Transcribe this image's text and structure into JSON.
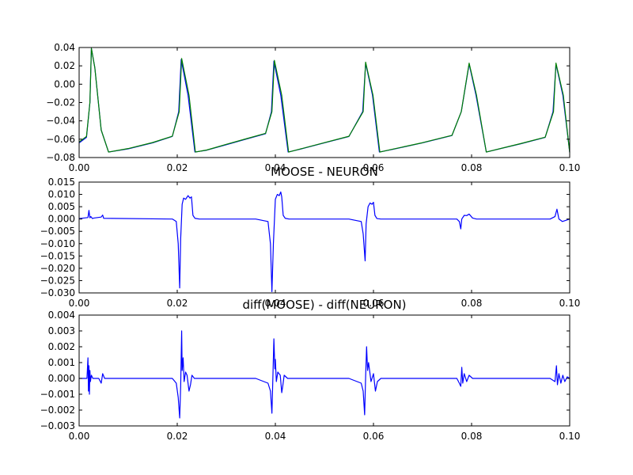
{
  "chart_data": [
    {
      "type": "line",
      "title": "",
      "xlabel": "",
      "ylabel": "",
      "xlim": [
        0.0,
        0.1
      ],
      "ylim": [
        -0.08,
        0.04
      ],
      "xticks": [
        "0.00",
        "0.02",
        "0.04",
        "0.06",
        "0.08",
        "0.10"
      ],
      "yticks": [
        "0.04",
        "0.02",
        "0.00",
        "−0.02",
        "−0.04",
        "−0.06",
        "−0.08"
      ],
      "grid": false,
      "series": [
        {
          "color": "#0000ff",
          "x": [
            0.0,
            0.0015,
            0.0022,
            0.0025,
            0.0032,
            0.0045,
            0.006,
            0.01,
            0.015,
            0.019,
            0.0203,
            0.0208,
            0.0222,
            0.0236,
            0.026,
            0.03,
            0.034,
            0.038,
            0.0392,
            0.0397,
            0.0411,
            0.0426,
            0.045,
            0.05,
            0.055,
            0.0578,
            0.0584,
            0.0598,
            0.0612,
            0.064,
            0.07,
            0.076,
            0.0779,
            0.0795,
            0.0809,
            0.083,
            0.09,
            0.095,
            0.0966,
            0.0972,
            0.0986,
            0.1
          ],
          "y": [
            -0.064,
            -0.058,
            -0.02,
            0.039,
            0.018,
            -0.05,
            -0.074,
            -0.0705,
            -0.064,
            -0.057,
            -0.03,
            0.027,
            -0.012,
            -0.074,
            -0.072,
            -0.066,
            -0.06,
            -0.054,
            -0.03,
            0.025,
            -0.012,
            -0.074,
            -0.071,
            -0.064,
            -0.057,
            -0.03,
            0.023,
            -0.012,
            -0.074,
            -0.071,
            -0.064,
            -0.056,
            -0.03,
            0.022,
            -0.012,
            -0.074,
            -0.065,
            -0.058,
            -0.03,
            0.022,
            -0.012,
            -0.074
          ]
        },
        {
          "color": "#008000",
          "x": [
            0.0,
            0.0015,
            0.0022,
            0.0025,
            0.0032,
            0.0045,
            0.006,
            0.01,
            0.015,
            0.019,
            0.0204,
            0.0209,
            0.0224,
            0.0237,
            0.026,
            0.03,
            0.034,
            0.038,
            0.0393,
            0.0398,
            0.0413,
            0.0427,
            0.045,
            0.05,
            0.055,
            0.0579,
            0.0584,
            0.0599,
            0.0613,
            0.064,
            0.07,
            0.076,
            0.0779,
            0.0795,
            0.081,
            0.083,
            0.09,
            0.095,
            0.0967,
            0.0972,
            0.0987,
            0.1
          ],
          "y": [
            -0.063,
            -0.057,
            -0.02,
            0.039,
            0.018,
            -0.05,
            -0.074,
            -0.0702,
            -0.0636,
            -0.0567,
            -0.03,
            0.028,
            -0.012,
            -0.074,
            -0.0718,
            -0.0656,
            -0.0596,
            -0.0536,
            -0.03,
            0.026,
            -0.012,
            -0.074,
            -0.0708,
            -0.0638,
            -0.0568,
            -0.03,
            0.024,
            -0.012,
            -0.074,
            -0.0708,
            -0.0638,
            -0.0558,
            -0.03,
            0.023,
            -0.012,
            -0.074,
            -0.0648,
            -0.0578,
            -0.03,
            0.023,
            -0.012,
            -0.0745
          ]
        }
      ]
    },
    {
      "type": "line",
      "title": "MOOSE - NEURON",
      "xlabel": "",
      "ylabel": "",
      "xlim": [
        0.0,
        0.1
      ],
      "ylim": [
        -0.03,
        0.015
      ],
      "xticks": [
        "0.00",
        "0.02",
        "0.04",
        "0.06",
        "0.08",
        "0.10"
      ],
      "yticks": [
        "0.015",
        "0.010",
        "0.005",
        "0.000",
        "−0.005",
        "−0.010",
        "−0.015",
        "−0.020",
        "−0.025",
        "−0.030"
      ],
      "grid": false,
      "series": [
        {
          "color": "#0000ff",
          "x": [
            0.0,
            0.0018,
            0.002,
            0.0022,
            0.0024,
            0.0027,
            0.003,
            0.0045,
            0.0048,
            0.005,
            0.019,
            0.0198,
            0.0202,
            0.0205,
            0.0207,
            0.021,
            0.0213,
            0.0217,
            0.0222,
            0.0226,
            0.0229,
            0.0232,
            0.0236,
            0.0245,
            0.036,
            0.0385,
            0.039,
            0.0393,
            0.0396,
            0.04,
            0.0404,
            0.0408,
            0.0411,
            0.0413,
            0.0416,
            0.042,
            0.0428,
            0.055,
            0.0575,
            0.0579,
            0.0583,
            0.0585,
            0.0589,
            0.0593,
            0.0597,
            0.06,
            0.0603,
            0.0607,
            0.0615,
            0.077,
            0.0775,
            0.0778,
            0.078,
            0.0785,
            0.079,
            0.0795,
            0.0802,
            0.081,
            0.096,
            0.097,
            0.0974,
            0.0978,
            0.0985,
            0.1
          ],
          "y": [
            0.0002,
            0.0006,
            0.0035,
            0.0005,
            0.001,
            0.0002,
            0.0004,
            0.0008,
            0.0016,
            0.0003,
            0.0,
            -0.001,
            -0.01,
            -0.028,
            -0.008,
            0.006,
            0.0085,
            0.008,
            0.0095,
            0.0085,
            0.009,
            0.0015,
            0.0003,
            0.0,
            0.0,
            -0.001,
            -0.01,
            -0.0295,
            -0.01,
            0.008,
            0.01,
            0.0095,
            0.011,
            0.009,
            0.0015,
            0.0003,
            0.0,
            0.0,
            -0.001,
            -0.006,
            -0.017,
            -0.002,
            0.005,
            0.0065,
            0.006,
            0.0068,
            0.0015,
            0.0002,
            0.0,
            0.0,
            -0.001,
            -0.004,
            0.0,
            0.0015,
            0.0014,
            0.002,
            0.0004,
            0.0,
            0.0,
            0.001,
            0.004,
            0.0,
            -0.001,
            0.0
          ]
        }
      ]
    },
    {
      "type": "line",
      "title": "diff(MOOSE) - diff(NEURON)",
      "xlabel": "",
      "ylabel": "",
      "xlim": [
        0.0,
        0.1
      ],
      "ylim": [
        -0.003,
        0.004
      ],
      "xticks": [
        "0.00",
        "0.02",
        "0.04",
        "0.06",
        "0.08",
        "0.10"
      ],
      "yticks": [
        "0.004",
        "0.003",
        "0.002",
        "0.001",
        "0.000",
        "−0.001",
        "−0.002",
        "−0.003"
      ],
      "grid": false,
      "series": [
        {
          "color": "#0000ff",
          "x": [
            0.0,
            0.0016,
            0.0018,
            0.0019,
            0.002,
            0.0021,
            0.0022,
            0.0023,
            0.0025,
            0.0028,
            0.004,
            0.0045,
            0.0048,
            0.0052,
            0.019,
            0.0198,
            0.0202,
            0.0205,
            0.0207,
            0.0209,
            0.021,
            0.0212,
            0.0214,
            0.0217,
            0.022,
            0.0224,
            0.0227,
            0.023,
            0.0235,
            0.036,
            0.0385,
            0.039,
            0.0393,
            0.0395,
            0.0397,
            0.0399,
            0.04,
            0.0402,
            0.0405,
            0.041,
            0.0413,
            0.0415,
            0.0418,
            0.0425,
            0.055,
            0.0575,
            0.0579,
            0.0582,
            0.0584,
            0.0586,
            0.0588,
            0.059,
            0.0595,
            0.06,
            0.0604,
            0.0608,
            0.0615,
            0.077,
            0.0775,
            0.0778,
            0.078,
            0.0782,
            0.0785,
            0.079,
            0.0795,
            0.0802,
            0.081,
            0.096,
            0.097,
            0.0973,
            0.0975,
            0.0978,
            0.0982,
            0.0986,
            0.099,
            0.0995,
            0.1
          ],
          "y": [
            0.0,
            0.0,
            0.0013,
            -0.0008,
            0.0008,
            -0.001,
            0.0005,
            -0.0002,
            0.0002,
            0.0,
            0.0,
            -0.0003,
            0.0003,
            0.0,
            0.0,
            -0.0003,
            -0.0012,
            -0.0025,
            -0.0005,
            0.003,
            0.0005,
            0.0013,
            -0.0002,
            0.0004,
            0.0002,
            -0.0008,
            -0.0004,
            0.0002,
            0.0,
            0.0,
            -0.0003,
            -0.0008,
            -0.0022,
            0.0001,
            0.0025,
            0.0006,
            0.0012,
            -0.0002,
            0.0004,
            0.0002,
            -0.0009,
            -0.0005,
            0.0002,
            0.0,
            0.0,
            -0.0003,
            -0.0008,
            -0.0023,
            0.0001,
            0.002,
            0.0005,
            0.001,
            -0.0002,
            0.0003,
            -0.0008,
            -0.0002,
            0.0,
            0.0,
            -0.0003,
            -0.0005,
            0.0007,
            -0.0003,
            0.0003,
            -0.0002,
            0.0002,
            0.0,
            0.0,
            0.0,
            -0.0002,
            0.0008,
            -0.0004,
            0.0003,
            -0.0003,
            0.0002,
            -0.0002,
            0.0001,
            0.0
          ]
        }
      ]
    }
  ]
}
